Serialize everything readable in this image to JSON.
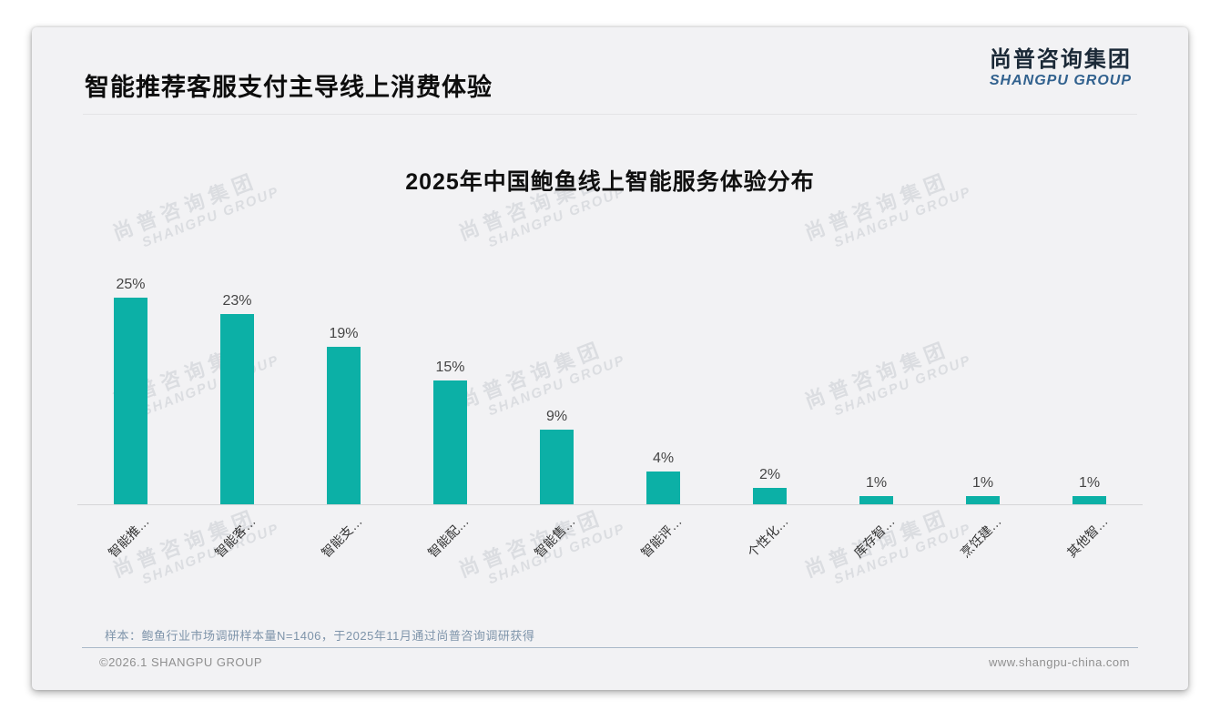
{
  "page": {
    "title": "智能推荐客服支付主导线上消费体验",
    "logo": {
      "cn": "尚普咨询集团",
      "en": "SHANGPU GROUP"
    },
    "watermark": {
      "cn": "尚普咨询集团",
      "en": "SHANGPU GROUP"
    },
    "note": "样本：鲍鱼行业市场调研样本量N=1406，于2025年11月通过尚普咨询调研获得",
    "footer": {
      "left": "©2026.1 SHANGPU GROUP",
      "right": "www.shangpu-china.com"
    }
  },
  "colors": {
    "bar": "#0cb0a6",
    "card_background": "#f2f2f4",
    "logo_en": "#31618e",
    "note_text": "#7e94aa",
    "axis_line": "#d6d6d8"
  },
  "chart_data": {
    "type": "bar",
    "title": "2025年中国鲍鱼线上智能服务体验分布",
    "categories": [
      "智能推…",
      "智能客…",
      "智能支…",
      "智能配…",
      "智能售…",
      "智能评…",
      "个性化…",
      "库存智…",
      "烹饪建…",
      "其他智…"
    ],
    "values": [
      25,
      23,
      19,
      15,
      9,
      4,
      2,
      1,
      1,
      1
    ],
    "value_labels": [
      "25%",
      "23%",
      "19%",
      "15%",
      "9%",
      "4%",
      "2%",
      "1%",
      "1%",
      "1%"
    ],
    "unit": "%",
    "ylim": [
      0,
      27
    ],
    "bar_color": "#0cb0a6",
    "xlabel": "",
    "ylabel": "",
    "grid": false,
    "legend": false,
    "x_label_rotation": -45
  }
}
